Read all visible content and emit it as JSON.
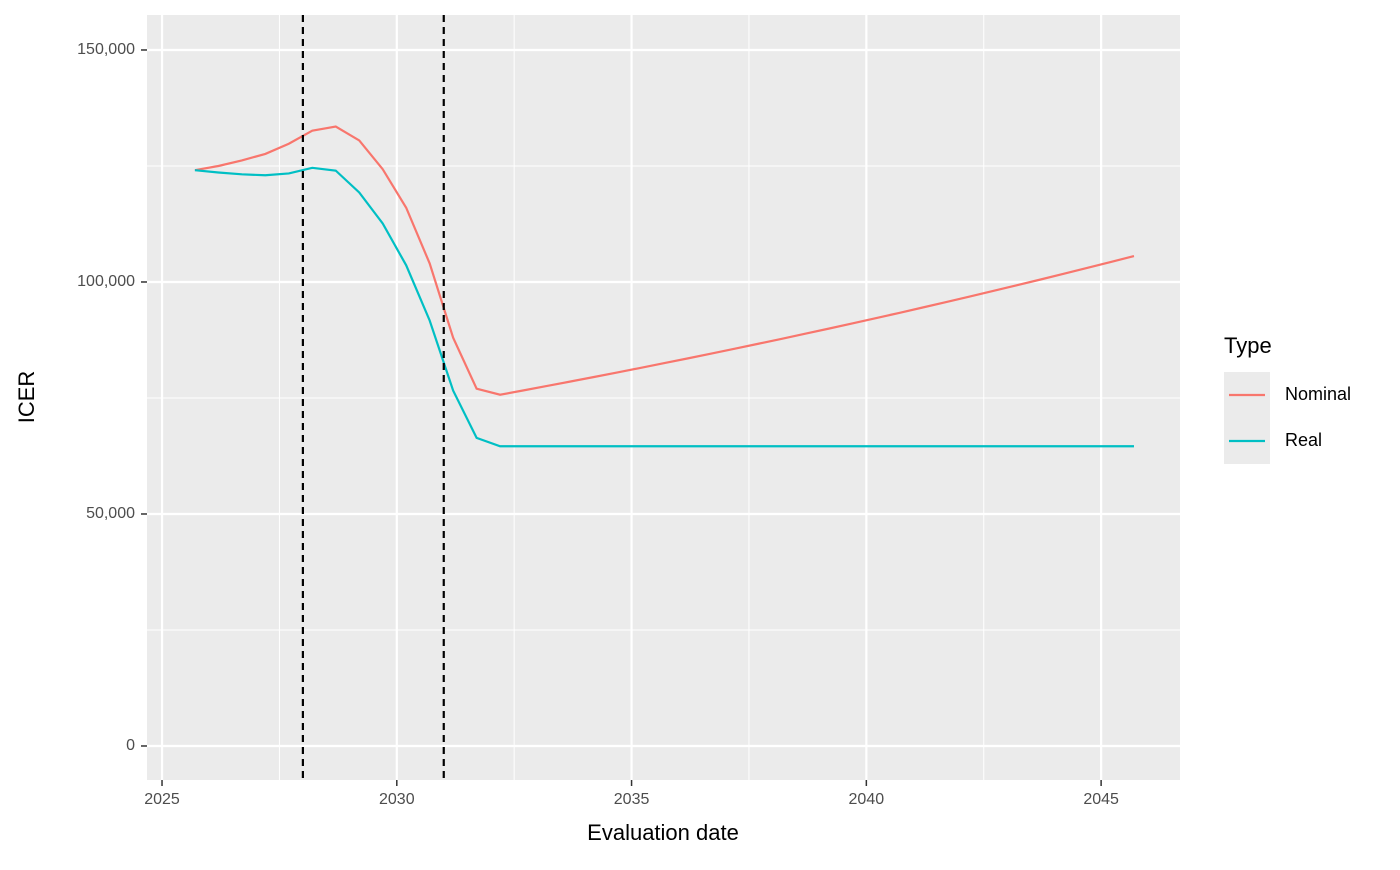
{
  "chart_data": {
    "type": "line",
    "xlabel": "Evaluation date",
    "ylabel": "ICER",
    "x": [
      2025.7,
      2026.2,
      2026.7,
      2027.2,
      2027.7,
      2028.2,
      2028.7,
      2029.2,
      2029.7,
      2030.2,
      2030.7,
      2031.2,
      2031.7,
      2032.2,
      2032.7,
      2033.2,
      2033.7,
      2034.2,
      2034.7,
      2035.2,
      2035.7,
      2036.2,
      2036.7,
      2037.2,
      2037.7,
      2038.2,
      2038.7,
      2039.2,
      2039.7,
      2040.2,
      2040.7,
      2041.2,
      2041.7,
      2042.2,
      2042.7,
      2043.2,
      2043.7,
      2044.2,
      2044.7,
      2045.2,
      2045.7
    ],
    "series": [
      {
        "name": "Nominal",
        "color": "#F8766D",
        "values": [
          124100,
          125000,
          126200,
          127600,
          129800,
          132600,
          133500,
          130500,
          124300,
          116000,
          104000,
          88000,
          77000,
          75700,
          76640,
          77590,
          78550,
          79520,
          80510,
          81510,
          82520,
          83540,
          84580,
          85630,
          86690,
          87760,
          88850,
          89950,
          91070,
          92200,
          93340,
          94500,
          95670,
          96860,
          98060,
          99280,
          100510,
          101760,
          103020,
          104300,
          105590
        ]
      },
      {
        "name": "Real",
        "color": "#00BFC4",
        "values": [
          124100,
          123600,
          123200,
          123000,
          123400,
          124600,
          124000,
          119300,
          112600,
          103600,
          91700,
          76600,
          66400,
          64600,
          64600,
          64600,
          64600,
          64600,
          64600,
          64600,
          64600,
          64600,
          64600,
          64600,
          64600,
          64600,
          64600,
          64600,
          64600,
          64600,
          64600,
          64600,
          64600,
          64600,
          64600,
          64600,
          64600,
          64600,
          64600,
          64600,
          64600
        ]
      }
    ],
    "vlines": [
      2028,
      2031
    ],
    "xlim": [
      2024.68,
      2046.68
    ],
    "xticks": [
      2025,
      2030,
      2035,
      2040,
      2045
    ],
    "ylim": [
      -7330,
      157540
    ],
    "yticks": [
      0,
      {
        "value": 50000,
        "label": "50,000"
      },
      {
        "value": 100000,
        "label": "100,000"
      },
      {
        "value": 150000,
        "label": "150,000"
      }
    ],
    "grid": true,
    "legend_title": "Type",
    "legend": "right"
  }
}
